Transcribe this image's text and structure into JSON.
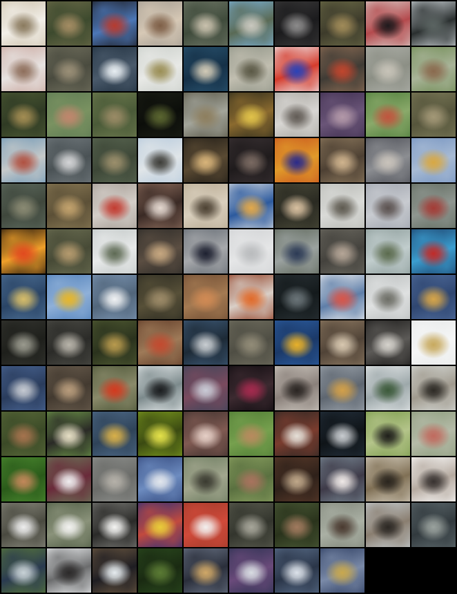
{
  "grid": {
    "columns": 10,
    "rows": 13,
    "tile_count": 128,
    "background": "#000000",
    "tiles": [
      {
        "colors": [
          "#cbbfa8",
          "#8a7a5e",
          "#f2efe9"
        ]
      },
      {
        "colors": [
          "#6b6a48",
          "#a38c63",
          "#3d4a2e"
        ]
      },
      {
        "colors": [
          "#1c1a1d",
          "#b63b2f",
          "#4c77b7"
        ]
      },
      {
        "colors": [
          "#a19a90",
          "#7e5f47",
          "#d6c8b5"
        ]
      },
      {
        "colors": [
          "#6e7666",
          "#c9c1ad",
          "#3f4b3b"
        ]
      },
      {
        "colors": [
          "#7bb2d8",
          "#c9c8bf",
          "#5a6a55"
        ]
      },
      {
        "colors": [
          "#3b3a3a",
          "#8c8b8b",
          "#1b1b1d"
        ]
      },
      {
        "colors": [
          "#6c6b47",
          "#a08b59",
          "#3d3b2b"
        ]
      },
      {
        "colors": [
          "#d9cdc9",
          "#1f1a1d",
          "#b44a4d"
        ]
      },
      {
        "colors": [
          "#cfd6da",
          "#5b6462",
          "#2a2f2f"
        ]
      },
      {
        "colors": [
          "#c9a69d",
          "#8e6e5b",
          "#e7e3e1"
        ]
      },
      {
        "colors": [
          "#71705e",
          "#9a8f77",
          "#4a4b3f"
        ]
      },
      {
        "colors": [
          "#20303f",
          "#e8eef2",
          "#4a5a6b"
        ]
      },
      {
        "colors": [
          "#c9cec9",
          "#9a8e55",
          "#e8e9e6"
        ]
      },
      {
        "colors": [
          "#2a5470",
          "#d2cbb7",
          "#153047"
        ]
      },
      {
        "colors": [
          "#8e9386",
          "#5a5845",
          "#c1beb0"
        ]
      },
      {
        "colors": [
          "#f0f1f4",
          "#2a43b8",
          "#d43b2c"
        ]
      },
      {
        "colors": [
          "#8f6e55",
          "#c0462e",
          "#3f3b35"
        ]
      },
      {
        "colors": [
          "#aeb0a9",
          "#c7c3b8",
          "#8c8f85"
        ]
      },
      {
        "colors": [
          "#6e8a52",
          "#8a6a4e",
          "#a9b499"
        ]
      },
      {
        "colors": [
          "#4d5a34",
          "#a38d53",
          "#2f3a24"
        ]
      },
      {
        "colors": [
          "#5d7a53",
          "#c0866d",
          "#7a9261"
        ]
      },
      {
        "colors": [
          "#6d7a4e",
          "#9a8b66",
          "#4a5a38"
        ]
      },
      {
        "colors": [
          "#1b1e15",
          "#5a6530",
          "#0c0e0a"
        ]
      },
      {
        "colors": [
          "#555242",
          "#8d7e5e",
          "#a3a59b"
        ]
      },
      {
        "colors": [
          "#2a2a1c",
          "#e0c24a",
          "#8b6a2f"
        ]
      },
      {
        "colors": [
          "#a6a49d",
          "#615b55",
          "#d8d6d3"
        ]
      },
      {
        "colors": [
          "#3d2d4d",
          "#b298a8",
          "#6a5578"
        ]
      },
      {
        "colors": [
          "#4c7b3a",
          "#c0553e",
          "#8aa96a"
        ]
      },
      {
        "colors": [
          "#7c7b59",
          "#a39877",
          "#56553c"
        ]
      },
      {
        "colors": [
          "#6d97b6",
          "#b05141",
          "#c6c9c9"
        ]
      },
      {
        "colors": [
          "#727a7e",
          "#d4d5d7",
          "#4a5255"
        ]
      },
      {
        "colors": [
          "#5a6752",
          "#9b8f6c",
          "#3d4737"
        ]
      },
      {
        "colors": [
          "#b5c9dc",
          "#3d3d38",
          "#e0e5e8"
        ]
      },
      {
        "colors": [
          "#1e1b16",
          "#d8b47a",
          "#5a4a33"
        ]
      },
      {
        "colors": [
          "#3a3234",
          "#7a6a62",
          "#1f1b1c"
        ]
      },
      {
        "colors": [
          "#c9541f",
          "#2a2a8a",
          "#e09a2a"
        ]
      },
      {
        "colors": [
          "#8e7a5e",
          "#d0b48e",
          "#4d4033"
        ]
      },
      {
        "colors": [
          "#4b4d55",
          "#c9c3bb",
          "#8c8e92"
        ]
      },
      {
        "colors": [
          "#7392c0",
          "#d8a843",
          "#a8bbd4"
        ]
      },
      {
        "colors": [
          "#5e6b5f",
          "#8a8a73",
          "#3f473c"
        ]
      },
      {
        "colors": [
          "#8a7a55",
          "#c2a26d",
          "#5c5037"
        ]
      },
      {
        "colors": [
          "#a29a92",
          "#c23c31",
          "#d4cec8"
        ]
      },
      {
        "colors": [
          "#8e6e5e",
          "#e4d8d0",
          "#3a2a25"
        ]
      },
      {
        "colors": [
          "#b6a890",
          "#4d4233",
          "#d9cfbd"
        ]
      },
      {
        "colors": [
          "#d7dbe0",
          "#e3a94b",
          "#2c5a9e"
        ]
      },
      {
        "colors": [
          "#4a4a38",
          "#d8c0a0",
          "#2a2a22"
        ]
      },
      {
        "colors": [
          "#b6b8b3",
          "#5e5a50",
          "#d9dad7"
        ]
      },
      {
        "colors": [
          "#9da2ac",
          "#5b5250",
          "#c8cbd0"
        ]
      },
      {
        "colors": [
          "#5f6a5e",
          "#a33c36",
          "#8f9690"
        ]
      },
      {
        "colors": [
          "#1a120d",
          "#e04a1f",
          "#f0a02a"
        ]
      },
      {
        "colors": [
          "#6b6e52",
          "#b49a6e",
          "#474a36"
        ]
      },
      {
        "colors": [
          "#bfc5c4",
          "#5e6a54",
          "#e8eaea"
        ]
      },
      {
        "colors": [
          "#2b2a27",
          "#c6a780",
          "#5b4e42"
        ]
      },
      {
        "colors": [
          "#616870",
          "#1d2030",
          "#a7a9ac"
        ]
      },
      {
        "colors": [
          "#cfd1d3",
          "#b9bbbd",
          "#e5e6e7"
        ]
      },
      {
        "colors": [
          "#5d6659",
          "#2c3a55",
          "#9ba2a0"
        ]
      },
      {
        "colors": [
          "#6b6960",
          "#b5a697",
          "#44423d"
        ]
      },
      {
        "colors": [
          "#8a9a98",
          "#5b6b4e",
          "#c1cdcd"
        ]
      },
      {
        "colors": [
          "#1c3d66",
          "#c22a27",
          "#3b9ed0"
        ]
      },
      {
        "colors": [
          "#4e7197",
          "#d6bd6a",
          "#2a4465"
        ]
      },
      {
        "colors": [
          "#4f7fb9",
          "#e6b62a",
          "#8fb0d8"
        ]
      },
      {
        "colors": [
          "#7d97b5",
          "#f0f2f4",
          "#51657a"
        ]
      },
      {
        "colors": [
          "#2b2a21",
          "#9c8a68",
          "#575038"
        ]
      },
      {
        "colors": [
          "#6c4a32",
          "#d08a54",
          "#a47a52"
        ]
      },
      {
        "colors": [
          "#8f3a1f",
          "#e06a2a",
          "#d9cfc7"
        ]
      },
      {
        "colors": [
          "#2a3236",
          "#6a7478",
          "#141a1c"
        ]
      },
      {
        "colors": [
          "#f2f2f3",
          "#d8564a",
          "#5e7ea8"
        ]
      },
      {
        "colors": [
          "#b8bcbc",
          "#6d6e66",
          "#dfe1e1"
        ]
      },
      {
        "colors": [
          "#506d9e",
          "#d6a54a",
          "#2f4670"
        ]
      },
      {
        "colors": [
          "#343530",
          "#9a9a8e",
          "#1e1f1b"
        ]
      },
      {
        "colors": [
          "#4c4c46",
          "#b8b4aa",
          "#2b2b28"
        ]
      },
      {
        "colors": [
          "#505a32",
          "#b89a4e",
          "#2a321d"
        ]
      },
      {
        "colors": [
          "#5e3a27",
          "#c24a2f",
          "#9e7a58"
        ]
      },
      {
        "colors": [
          "#3e5a78",
          "#c9ced2",
          "#1d2a36"
        ]
      },
      {
        "colors": [
          "#6f6d5e",
          "#928c78",
          "#4f4e44"
        ]
      },
      {
        "colors": [
          "#2c5da0",
          "#e8b12a",
          "#1b3968"
        ]
      },
      {
        "colors": [
          "#8e7a62",
          "#d8c8b0",
          "#504337"
        ]
      },
      {
        "colors": [
          "#1a1918",
          "#d5d2cc",
          "#5c5a57"
        ]
      },
      {
        "colors": [
          "#e6e8e8",
          "#c7a95e",
          "#f5f6f6"
        ]
      },
      {
        "colors": [
          "#4a6695",
          "#c5cad2",
          "#2a3c5c"
        ]
      },
      {
        "colors": [
          "#6a5d4e",
          "#b89c7c",
          "#433a30"
        ]
      },
      {
        "colors": [
          "#4a5436",
          "#d23a1f",
          "#8a8a6a"
        ]
      },
      {
        "colors": [
          "#eaeeef",
          "#1b1d1f",
          "#7c8a8c"
        ]
      },
      {
        "colors": [
          "#3b455a",
          "#c9cbd6",
          "#7a4a5e"
        ]
      },
      {
        "colors": [
          "#0e0b0f",
          "#a42a4e",
          "#3c2a30"
        ]
      },
      {
        "colors": [
          "#cfcac2",
          "#2a2522",
          "#8a807a"
        ]
      },
      {
        "colors": [
          "#9ea6ae",
          "#d2a04a",
          "#5e6670"
        ]
      },
      {
        "colors": [
          "#e8ebec",
          "#3c5a3a",
          "#9da8aa"
        ]
      },
      {
        "colors": [
          "#d8dcd9",
          "#2d2a25",
          "#a09a8e"
        ]
      },
      {
        "colors": [
          "#5a6a3a",
          "#a5734e",
          "#3b4a27"
        ]
      },
      {
        "colors": [
          "#6f9a4a",
          "#e6dfc5",
          "#2a2a26"
        ]
      },
      {
        "colors": [
          "#4f6b8a",
          "#d8b04a",
          "#2f4358"
        ]
      },
      {
        "colors": [
          "#7c9a1e",
          "#e4e24a",
          "#3b4a12"
        ]
      },
      {
        "colors": [
          "#3c2f2c",
          "#e5cfc6",
          "#805a52"
        ]
      },
      {
        "colors": [
          "#4d7a33",
          "#b88a5e",
          "#76a04e"
        ]
      },
      {
        "colors": [
          "#2b2724",
          "#e5e0d8",
          "#7a3c2e"
        ]
      },
      {
        "colors": [
          "#24303c",
          "#c8ccd0",
          "#0f1418"
        ]
      },
      {
        "colors": [
          "#7a9a4a",
          "#1e1e1a",
          "#b4c48a"
        ]
      },
      {
        "colors": [
          "#8a9a7a",
          "#c06a5e",
          "#b5bba8"
        ]
      },
      {
        "colors": [
          "#4c8a30",
          "#c2885a",
          "#2a5a1a"
        ]
      },
      {
        "colors": [
          "#6a7a5a",
          "#f0eef0",
          "#6a2a3a"
        ]
      },
      {
        "colors": [
          "#8f918e",
          "#b5b1a9",
          "#6a6b68"
        ]
      },
      {
        "colors": [
          "#31467a",
          "#e2e6ec",
          "#6d8cc0"
        ]
      },
      {
        "colors": [
          "#6a7a5e",
          "#3a3a30",
          "#a2a68e"
        ]
      },
      {
        "colors": [
          "#8aa060",
          "#a8735e",
          "#5a7040"
        ]
      },
      {
        "colors": [
          "#5a3a2a",
          "#c0a88a",
          "#2e211a"
        ]
      },
      {
        "colors": [
          "#7a8a96",
          "#f0eae8",
          "#3e3a48"
        ]
      },
      {
        "colors": [
          "#d6cfc0",
          "#2a251e",
          "#807055"
        ]
      },
      {
        "colors": [
          "#ffffff",
          "#383230",
          "#b5aaa0"
        ]
      },
      {
        "colors": [
          "#8a8a7e",
          "#eeeeee",
          "#4a4a40"
        ]
      },
      {
        "colors": [
          "#4d5a42",
          "#f2f2f0",
          "#8a927a"
        ]
      },
      {
        "colors": [
          "#7a7a76",
          "#f5f5f3",
          "#2a2a28"
        ]
      },
      {
        "colors": [
          "#2a2f7a",
          "#e8cc3a",
          "#c24a3e"
        ]
      },
      {
        "colors": [
          "#a03a2a",
          "#f2f0ef",
          "#d04a3a"
        ]
      },
      {
        "colors": [
          "#5b5d50",
          "#a7a69a",
          "#33352d"
        ]
      },
      {
        "colors": [
          "#4a5a36",
          "#a07a5e",
          "#2a331c"
        ]
      },
      {
        "colors": [
          "#7e8478",
          "#4a3a30",
          "#aab0a4"
        ]
      },
      {
        "colors": [
          "#c8d0d4",
          "#2c2824",
          "#8a7e70"
        ]
      },
      {
        "colors": [
          "#5e6a6e",
          "#9aa29e",
          "#323a3e"
        ]
      },
      {
        "colors": [
          "#5a7a3a",
          "#c8d2d6",
          "#2a3a50"
        ]
      },
      {
        "colors": [
          "#f0f2f4",
          "#2c2a2a",
          "#6b6c6d"
        ]
      },
      {
        "colors": [
          "#6e5a42",
          "#e6ecef",
          "#1e1d22"
        ]
      },
      {
        "colors": [
          "#2a4a1e",
          "#5a7a34",
          "#1a2a12"
        ]
      },
      {
        "colors": [
          "#6a7486",
          "#d0a868",
          "#2a2e3a"
        ]
      },
      {
        "colors": [
          "#2a3150",
          "#d8dce2",
          "#6a4a7a"
        ]
      },
      {
        "colors": [
          "#5a6e8a",
          "#dce2ea",
          "#2a3548"
        ]
      },
      {
        "colors": [
          "#2a3a5e",
          "#c8a84e",
          "#7a8aa8"
        ]
      }
    ]
  }
}
